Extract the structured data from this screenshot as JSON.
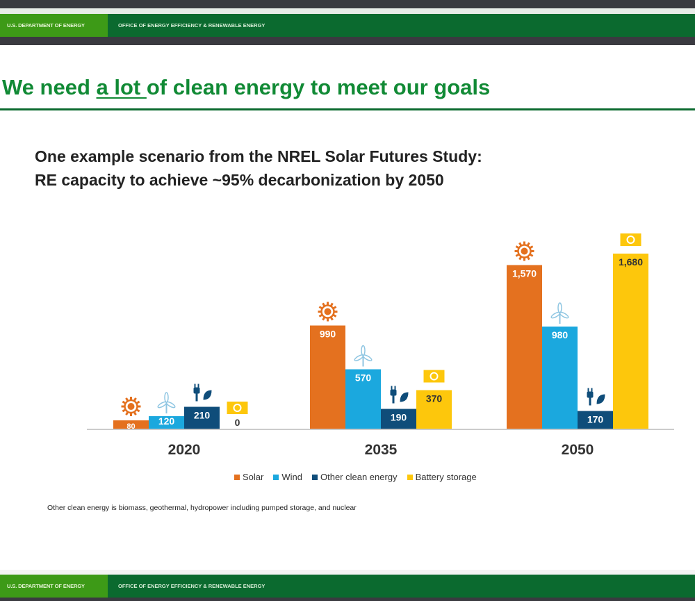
{
  "header": {
    "doe": "U.S. DEPARTMENT OF ENERGY",
    "office": "OFFICE OF ENERGY EFFICIENCY & RENEWABLE ENERGY"
  },
  "title": {
    "pre": "We need ",
    "emph": "a lot ",
    "post": "of clean energy to meet our goals"
  },
  "subtitle": [
    "One example scenario from the NREL Solar Futures Study:",
    "RE capacity to achieve ~95% decarbonization by 2050"
  ],
  "footnote": "Other clean energy is biomass, geothermal, hydropower including pumped storage, and nuclear",
  "footer": {
    "doe": "U.S. DEPARTMENT OF ENERGY",
    "office": "OFFICE OF ENERGY EFFICIENCY & RENEWABLE ENERGY"
  },
  "chart_data": {
    "type": "bar",
    "categories": [
      "2020",
      "2035",
      "2050"
    ],
    "series": [
      {
        "name": "Solar",
        "color": "#e4711f",
        "icon": "sun-icon",
        "values": [
          80,
          990,
          1570
        ],
        "labels": [
          "80",
          "990",
          "1,570"
        ]
      },
      {
        "name": "Wind",
        "color": "#1ba8de",
        "icon": "wind-turbine-icon",
        "values": [
          120,
          570,
          980
        ],
        "labels": [
          "120",
          "570",
          "980"
        ]
      },
      {
        "name": "Other clean energy",
        "color": "#0f4d7a",
        "icon": "plug-leaf-icon",
        "values": [
          210,
          190,
          170
        ],
        "labels": [
          "210",
          "190",
          "170"
        ]
      },
      {
        "name": "Battery storage",
        "color": "#fdc70c",
        "icon": "battery-icon",
        "values": [
          0,
          370,
          1680
        ],
        "labels": [
          "0",
          "370",
          "1,680"
        ]
      }
    ],
    "ylim": [
      0,
      1700
    ],
    "legend": "bottom",
    "grid": false
  }
}
